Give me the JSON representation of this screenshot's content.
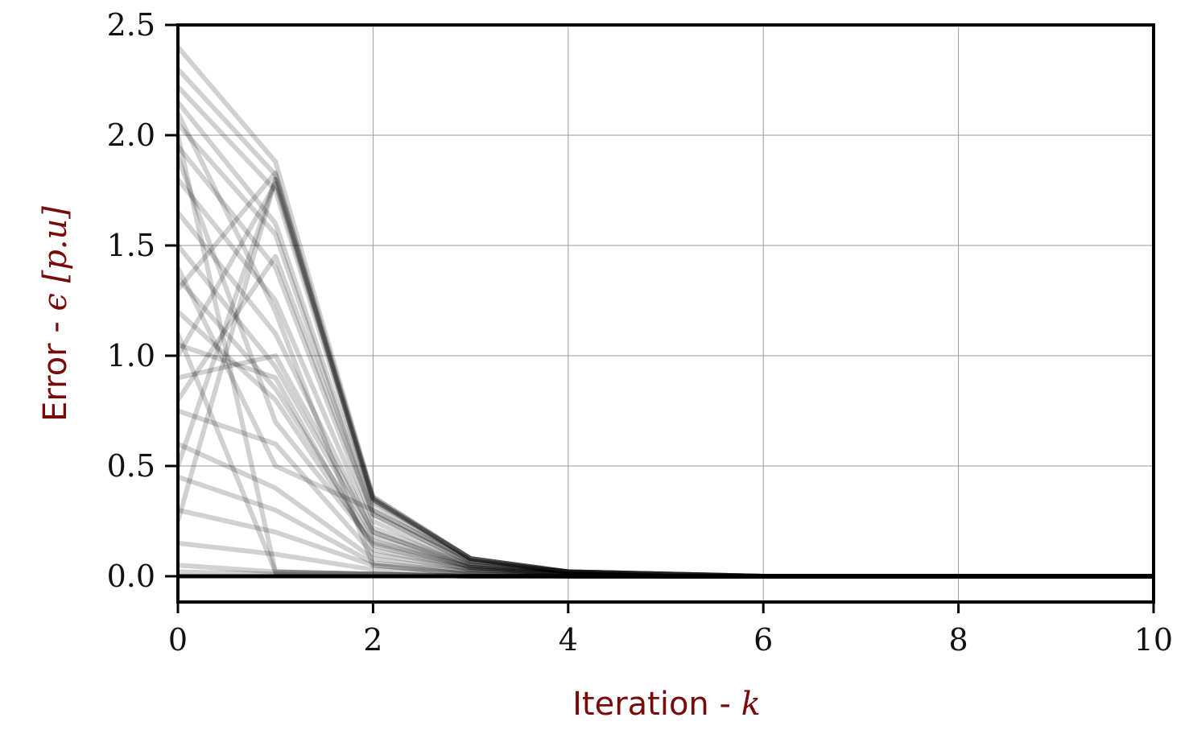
{
  "chart_data": {
    "type": "line",
    "xlabel": {
      "prefix": "Iteration - ",
      "symbol": "k"
    },
    "ylabel": {
      "prefix": "Error - ",
      "symbol": "ϵ [p.u]"
    },
    "xlim": [
      0,
      10
    ],
    "ylim": [
      0,
      2.5
    ],
    "x_ticks": [
      0,
      2,
      4,
      6,
      8,
      10
    ],
    "y_ticks": [
      0.0,
      0.5,
      1.0,
      1.5,
      2.0,
      2.5
    ],
    "x_tick_labels": [
      "0",
      "2",
      "4",
      "6",
      "8",
      "10"
    ],
    "y_tick_labels": [
      "0.0",
      "0.5",
      "1.0",
      "1.5",
      "2.0",
      "2.5"
    ],
    "grid": true,
    "colors": {
      "lines": "#000000",
      "label": "#7a0a0a",
      "grid": "#9a9a9a"
    },
    "x": [
      0,
      1,
      2,
      3,
      4,
      5,
      6,
      7,
      8,
      9,
      10
    ],
    "series": [
      {
        "values": [
          2.4,
          1.88,
          0.36,
          0.08,
          0.02,
          0.01,
          0.0,
          0.0,
          0.0,
          0.0,
          0.0
        ]
      },
      {
        "values": [
          2.3,
          1.82,
          0.35,
          0.08,
          0.02,
          0.01,
          0.0,
          0.0,
          0.0,
          0.0,
          0.0
        ]
      },
      {
        "values": [
          2.22,
          1.75,
          0.33,
          0.07,
          0.02,
          0.01,
          0.0,
          0.0,
          0.0,
          0.0,
          0.0
        ]
      },
      {
        "values": [
          2.15,
          1.6,
          0.3,
          0.07,
          0.02,
          0.01,
          0.0,
          0.0,
          0.0,
          0.0,
          0.0
        ]
      },
      {
        "values": [
          2.05,
          1.55,
          0.28,
          0.06,
          0.02,
          0.01,
          0.0,
          0.0,
          0.0,
          0.0,
          0.0
        ]
      },
      {
        "values": [
          1.95,
          1.4,
          0.25,
          0.05,
          0.02,
          0.01,
          0.0,
          0.0,
          0.0,
          0.0,
          0.0
        ]
      },
      {
        "values": [
          1.8,
          1.25,
          0.22,
          0.05,
          0.01,
          0.0,
          0.0,
          0.0,
          0.0,
          0.0,
          0.0
        ]
      },
      {
        "values": [
          1.65,
          1.1,
          0.2,
          0.04,
          0.01,
          0.0,
          0.0,
          0.0,
          0.0,
          0.0,
          0.0
        ]
      },
      {
        "values": [
          1.5,
          0.95,
          0.18,
          0.04,
          0.01,
          0.0,
          0.0,
          0.0,
          0.0,
          0.0,
          0.0
        ]
      },
      {
        "values": [
          1.35,
          0.85,
          0.16,
          0.04,
          0.01,
          0.0,
          0.0,
          0.0,
          0.0,
          0.0,
          0.0
        ]
      },
      {
        "values": [
          1.2,
          0.8,
          0.14,
          0.03,
          0.01,
          0.0,
          0.0,
          0.0,
          0.0,
          0.0,
          0.0
        ]
      },
      {
        "values": [
          1.05,
          0.9,
          0.12,
          0.03,
          0.01,
          0.0,
          0.0,
          0.0,
          0.0,
          0.0,
          0.0
        ]
      },
      {
        "values": [
          0.9,
          1.0,
          0.2,
          0.05,
          0.01,
          0.0,
          0.0,
          0.0,
          0.0,
          0.0,
          0.0
        ]
      },
      {
        "values": [
          0.75,
          0.6,
          0.1,
          0.03,
          0.01,
          0.0,
          0.0,
          0.0,
          0.0,
          0.0,
          0.0
        ]
      },
      {
        "values": [
          0.6,
          0.4,
          0.08,
          0.02,
          0.01,
          0.0,
          0.0,
          0.0,
          0.0,
          0.0,
          0.0
        ]
      },
      {
        "values": [
          0.45,
          0.3,
          0.06,
          0.02,
          0.0,
          0.0,
          0.0,
          0.0,
          0.0,
          0.0,
          0.0
        ]
      },
      {
        "values": [
          0.3,
          0.2,
          0.05,
          0.01,
          0.0,
          0.0,
          0.0,
          0.0,
          0.0,
          0.0,
          0.0
        ]
      },
      {
        "values": [
          0.15,
          0.1,
          0.03,
          0.01,
          0.0,
          0.0,
          0.0,
          0.0,
          0.0,
          0.0,
          0.0
        ]
      },
      {
        "values": [
          2.1,
          1.2,
          0.05,
          0.01,
          0.0,
          0.0,
          0.0,
          0.0,
          0.0,
          0.0,
          0.0
        ]
      },
      {
        "values": [
          1.4,
          0.5,
          0.3,
          0.07,
          0.02,
          0.0,
          0.0,
          0.0,
          0.0,
          0.0,
          0.0
        ]
      },
      {
        "values": [
          0.8,
          1.45,
          0.28,
          0.06,
          0.02,
          0.0,
          0.0,
          0.0,
          0.0,
          0.0,
          0.0
        ]
      },
      {
        "values": [
          1.9,
          0.7,
          0.15,
          0.04,
          0.01,
          0.0,
          0.0,
          0.0,
          0.0,
          0.0,
          0.0
        ]
      },
      {
        "values": [
          0.5,
          1.8,
          0.34,
          0.08,
          0.02,
          0.01,
          0.0,
          0.0,
          0.0,
          0.0,
          0.0
        ]
      },
      {
        "values": [
          1.0,
          1.78,
          0.35,
          0.08,
          0.02,
          0.01,
          0.0,
          0.0,
          0.0,
          0.0,
          0.0
        ]
      },
      {
        "values": [
          1.3,
          1.83,
          0.36,
          0.08,
          0.02,
          0.01,
          0.0,
          0.0,
          0.0,
          0.0,
          0.0
        ]
      },
      {
        "values": [
          0.25,
          1.8,
          0.35,
          0.08,
          0.02,
          0.01,
          0.0,
          0.0,
          0.0,
          0.0,
          0.0
        ]
      },
      {
        "values": [
          2.0,
          0.02,
          0.01,
          0.0,
          0.0,
          0.0,
          0.0,
          0.0,
          0.0,
          0.0,
          0.0
        ]
      },
      {
        "values": [
          1.1,
          0.02,
          0.01,
          0.0,
          0.0,
          0.0,
          0.0,
          0.0,
          0.0,
          0.0,
          0.0
        ]
      },
      {
        "values": [
          0.05,
          0.02,
          0.01,
          0.0,
          0.0,
          0.0,
          0.0,
          0.0,
          0.0,
          0.0,
          0.0
        ]
      },
      {
        "values": [
          0.02,
          0.01,
          0.01,
          0.0,
          0.0,
          0.0,
          0.0,
          0.0,
          0.0,
          0.0,
          0.0
        ]
      }
    ]
  }
}
